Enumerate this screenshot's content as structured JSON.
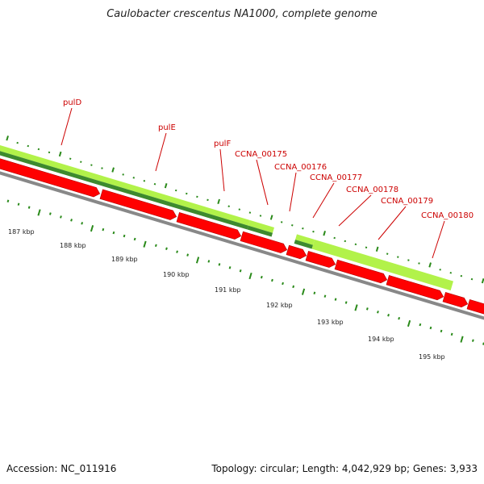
{
  "title": "Caulobacter crescentus NA1000, complete genome",
  "footer": {
    "accession": "Accession: NC_011916",
    "summary": "Topology: circular; Length: 4,042,929 bp; Genes: 3,933"
  },
  "colors": {
    "gene_label": "#cc0000",
    "leader_line": "#cc0000",
    "forward_gene_light": "#b2f24a",
    "forward_gene_dark": "#3d8a2e",
    "reverse_gene": "#ff0000",
    "backbone": "#888888",
    "tick": "#2a8a1a"
  },
  "tick_labels": [
    "187 kbp",
    "188 kbp",
    "189 kbp",
    "190 kbp",
    "191 kbp",
    "192 kbp",
    "193 kbp",
    "194 kbp",
    "195 kbp"
  ],
  "gene_labels": [
    "pulD",
    "pulE",
    "pulF",
    "CCNA_00175",
    "CCNA_00176",
    "CCNA_00177",
    "CCNA_00178",
    "CCNA_00179",
    "CCNA_00180"
  ]
}
